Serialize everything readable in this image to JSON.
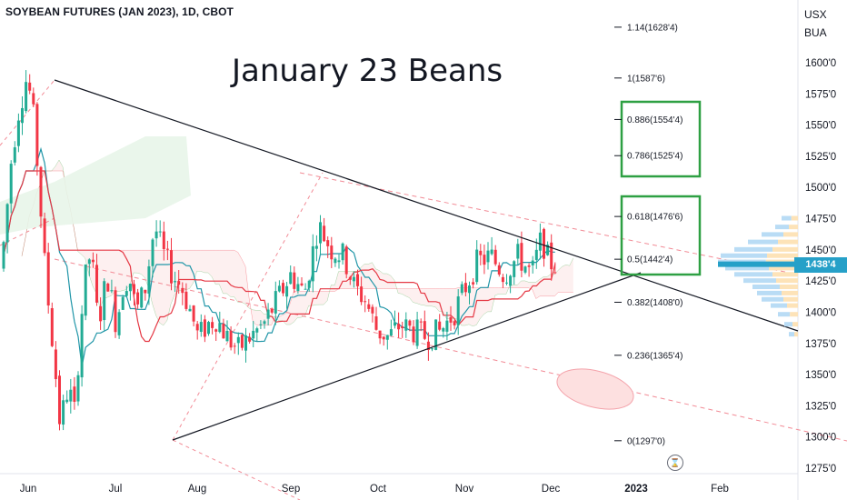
{
  "chart_title": "SOYBEAN FUTURES (JAN 2023), 1D, CBOT",
  "annotation_title": "January 23 Beans",
  "currency": "USX",
  "unit": "BUA",
  "last_price_label": "1438'4",
  "colors": {
    "up": "#22ab94",
    "down": "#f23645",
    "tenkan": "#2196a8",
    "kijun": "#e53945",
    "cloud_bull": "#e8f5e9",
    "cloud_bear": "#fdecec",
    "fib_box": "#2ea043",
    "volume_profile": "#b9dcf5",
    "volume_profile_alt": "#fde3b8",
    "price_tag": "#26a0c8"
  },
  "chart_data": {
    "type": "candlestick",
    "title": "SOYBEAN FUTURES (JAN 2023), 1D, CBOT",
    "x_labels": [
      "Jun",
      "Jul",
      "Aug",
      "Sep",
      "Oct",
      "Nov",
      "Dec",
      "2023",
      "Feb"
    ],
    "y_ticks": [
      "1600'0",
      "1575'0",
      "1550'0",
      "1525'0",
      "1500'0",
      "1475'0",
      "1450'0",
      "1425'0",
      "1400'0",
      "1375'0",
      "1350'0",
      "1325'0",
      "1300'0",
      "1275'0"
    ],
    "ylim": [
      1270,
      1640
    ],
    "fib_levels": [
      {
        "ratio": 1.14,
        "label": "1.14(1628'4)",
        "price": 1628.5
      },
      {
        "ratio": 1,
        "label": "1(1587'6)",
        "price": 1587.75
      },
      {
        "ratio": 0.886,
        "label": "0.886(1554'4)",
        "price": 1554.5
      },
      {
        "ratio": 0.786,
        "label": "0.786(1525'4)",
        "price": 1525.5
      },
      {
        "ratio": 0.618,
        "label": "0.618(1476'6)",
        "price": 1476.75
      },
      {
        "ratio": 0.5,
        "label": "0.5(1442'4)",
        "price": 1442.5
      },
      {
        "ratio": 0.382,
        "label": "0.382(1408'0)",
        "price": 1408
      },
      {
        "ratio": 0.236,
        "label": "0.236(1365'4)",
        "price": 1365.5
      },
      {
        "ratio": 0,
        "label": "0(1297'0)",
        "price": 1297
      }
    ],
    "last_price": 1438.5,
    "triangle": {
      "top_high": 1589,
      "bottom_low": 1297,
      "apex_price": 1385
    }
  }
}
